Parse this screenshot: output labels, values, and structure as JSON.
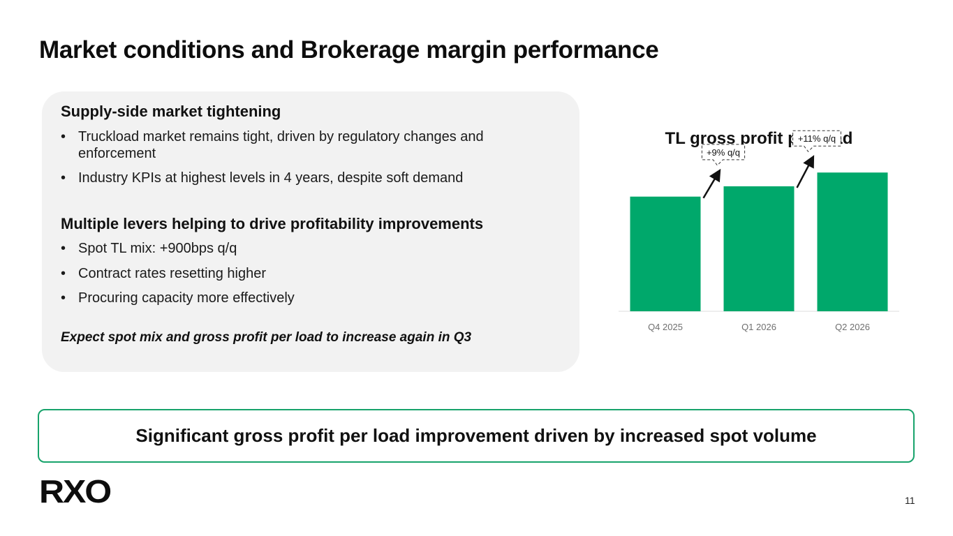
{
  "slide": {
    "title": "Market conditions and Brokerage margin performance",
    "page_number": "11"
  },
  "card": {
    "section1": {
      "heading": "Supply-side market tightening",
      "bullets": [
        "Truckload market remains tight, driven by regulatory changes and enforcement",
        "Industry KPIs at highest levels in 4 years, despite soft demand"
      ]
    },
    "section2": {
      "heading": "Multiple levers helping to drive profitability improvements",
      "bullets": [
        "Spot TL mix: +900bps q/q",
        "Contract rates resetting higher",
        "Procuring capacity more effectively"
      ]
    },
    "footer": "Expect spot mix and gross profit per load to increase again in Q3",
    "bullet_glyph": "•"
  },
  "chart_data": {
    "type": "bar",
    "title": "TL gross profit per load",
    "categories": [
      "Q4 2025",
      "Q1 2026",
      "Q2 2026"
    ],
    "values": [
      100,
      109,
      121
    ],
    "annotations": [
      "+9% q/q",
      "+11% q/q"
    ],
    "ylim": [
      0,
      140
    ],
    "grid": false,
    "legend": "none",
    "bar_color": "#00a86b",
    "value_labels": false
  },
  "callout": {
    "text": "Significant gross profit per load improvement driven by increased spot volume"
  },
  "brand": {
    "logo_text": "RXO",
    "accent_color": "#00a86b",
    "border_color": "#17a36b"
  }
}
